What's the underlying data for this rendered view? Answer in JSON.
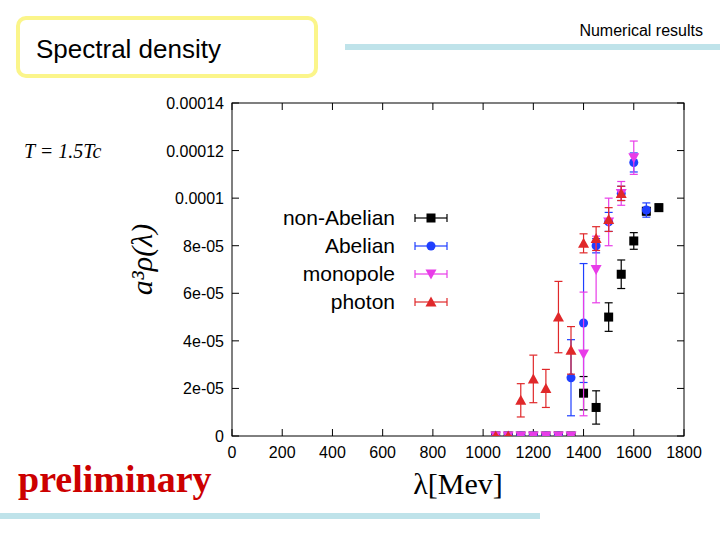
{
  "slide": {
    "title": "Spectral density",
    "section": "Numerical results",
    "stamp": "preliminary"
  },
  "chart_data": {
    "type": "scatter",
    "xlabel": "λ[Mev]",
    "ylabel": "a³ρ(λ)",
    "annotations": [
      "T = 1.5Tc"
    ],
    "xlim": [
      0,
      1800
    ],
    "ylim": [
      0,
      0.00014
    ],
    "xticks": [
      0,
      200,
      400,
      600,
      800,
      1000,
      1200,
      1400,
      1600,
      1800
    ],
    "yticks": [
      0,
      {
        "value": 2e-05,
        "label": "2e-05"
      },
      {
        "value": 4e-05,
        "label": "4e-05"
      },
      {
        "value": 6e-05,
        "label": "6e-05"
      },
      {
        "value": 8e-05,
        "label": "8e-05"
      },
      0.0001,
      0.00012,
      0.00014
    ],
    "legend": "left",
    "series": [
      {
        "name": "non-Abelian",
        "color": "#000000",
        "marker": "square",
        "x": [
          1050,
          1100,
          1150,
          1200,
          1250,
          1300,
          1350,
          1400,
          1450,
          1500,
          1550,
          1600,
          1650,
          1700
        ],
        "values": [
          0,
          0,
          0,
          0,
          0,
          0,
          0,
          1.8e-05,
          1.2e-05,
          5e-05,
          6.8e-05,
          8.2e-05,
          9.45e-05,
          9.6e-05
        ],
        "errors": [
          0,
          0,
          0,
          0,
          0,
          0,
          0,
          7e-06,
          7e-06,
          6e-06,
          6e-06,
          3.5e-06,
          1.5e-06,
          1.5e-06
        ]
      },
      {
        "name": "Abelian",
        "color": "#1f3fff",
        "marker": "circle",
        "x": [
          1050,
          1100,
          1150,
          1200,
          1250,
          1300,
          1350,
          1400,
          1450,
          1500,
          1550,
          1600,
          1650
        ],
        "values": [
          0,
          0,
          0,
          0,
          0,
          0,
          2.45e-05,
          4.75e-05,
          8e-05,
          9e-05,
          0.000102,
          0.000115,
          9.5e-05
        ],
        "errors": [
          0,
          0,
          0,
          0,
          0,
          0,
          1.6e-05,
          2.5e-05,
          3e-06,
          4e-06,
          3e-06,
          4e-06,
          3e-06
        ]
      },
      {
        "name": "monopole",
        "color": "#e83ce8",
        "marker": "triangle-down",
        "x": [
          1050,
          1100,
          1150,
          1200,
          1250,
          1300,
          1350,
          1400,
          1450,
          1500,
          1550,
          1600
        ],
        "values": [
          0,
          0,
          0,
          0,
          0,
          0,
          0,
          3.45e-05,
          7e-05,
          9e-05,
          0.000102,
          0.000117
        ],
        "errors": [
          0,
          0,
          0,
          0,
          0,
          0,
          0,
          2.6e-05,
          1.4e-05,
          1e-05,
          5e-06,
          7e-06
        ]
      },
      {
        "name": "photon",
        "color": "#e0282a",
        "marker": "triangle-up",
        "x": [
          1050,
          1100,
          1150,
          1200,
          1250,
          1300,
          1350,
          1400,
          1450,
          1500,
          1550
        ],
        "values": [
          0,
          0,
          1.5e-05,
          2.4e-05,
          2e-05,
          5e-05,
          3.6e-05,
          8.1e-05,
          8.3e-05,
          9.1e-05,
          0.000102
        ],
        "errors": [
          0,
          0,
          7e-06,
          1e-05,
          8e-06,
          1.5e-05,
          1e-05,
          4e-06,
          5e-06,
          5e-06,
          3e-06
        ]
      }
    ]
  }
}
